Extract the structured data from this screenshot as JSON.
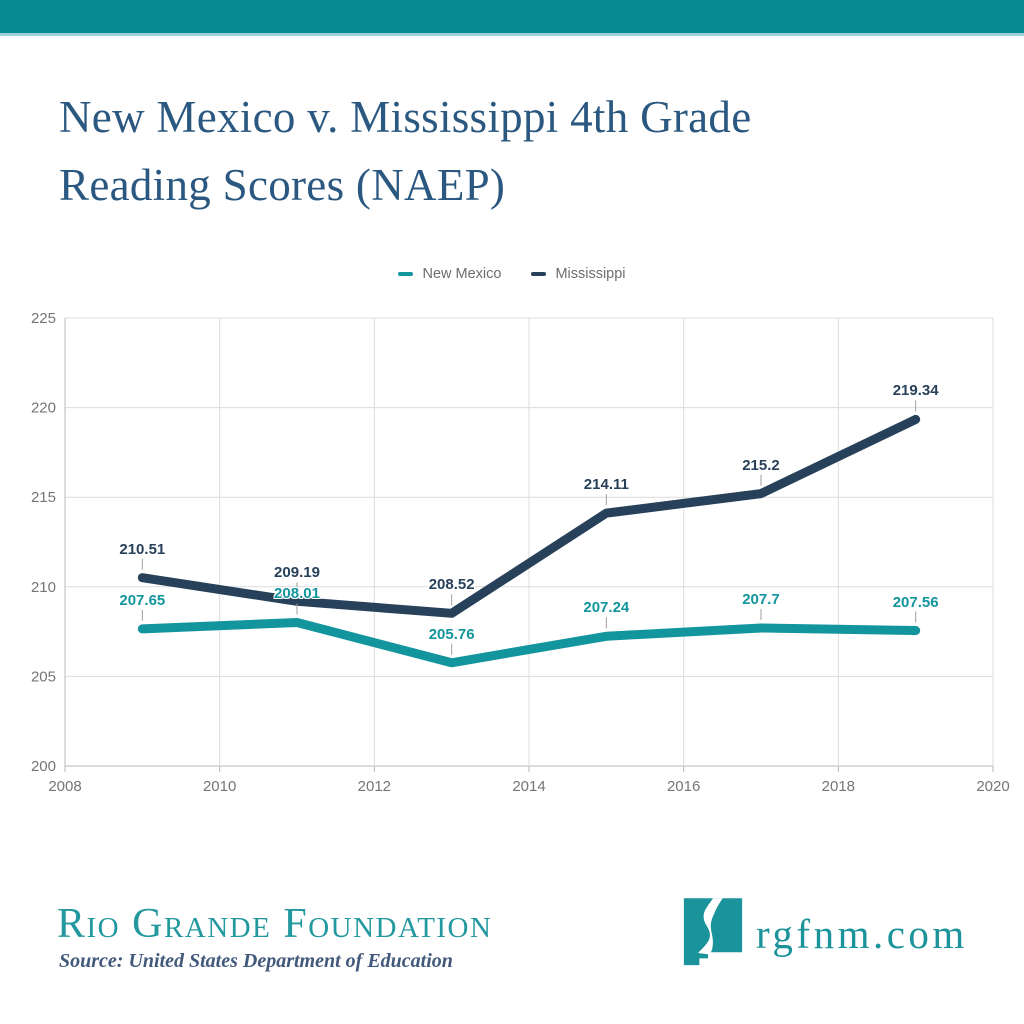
{
  "header": {
    "bar_color": "#088B94"
  },
  "title": {
    "line1": "New Mexico v. Mississippi 4th Grade",
    "line2": "Reading Scores (NAEP)",
    "color": "#2B5880"
  },
  "chart_data": {
    "type": "line",
    "x": [
      2009,
      2011,
      2013,
      2015,
      2017,
      2019
    ],
    "series": [
      {
        "name": "New Mexico",
        "color": "#12959D",
        "label_color": "#12959D",
        "values": [
          207.65,
          208.01,
          205.76,
          207.24,
          207.7,
          207.56
        ]
      },
      {
        "name": "Mississippi",
        "color": "#28415A",
        "label_color": "#28415A",
        "values": [
          210.51,
          209.19,
          208.52,
          214.11,
          215.2,
          219.34
        ]
      }
    ],
    "xlim": [
      2008,
      2020
    ],
    "ylim": [
      200,
      225
    ],
    "xticks": [
      2008,
      2010,
      2012,
      2014,
      2016,
      2018,
      2020
    ],
    "yticks": [
      200,
      205,
      210,
      215,
      220,
      225
    ],
    "grid": true,
    "gridline_color": "#DCDCDC",
    "axis_color": "#B9B9B9",
    "tick_label_color": "#757575",
    "legend_position": "top",
    "annotations": "value labels shown above each data point with short stems",
    "title": "New Mexico v. Mississippi 4th Grade Reading Scores (NAEP)",
    "xlabel": "",
    "ylabel": ""
  },
  "footer": {
    "org_name": "Rio Grande Foundation",
    "source": "Source: United States Department of Education",
    "website": "rgfnm.com",
    "logo": "new-mexico-state-with-rio-grande-river",
    "teal": "#1B939B"
  }
}
